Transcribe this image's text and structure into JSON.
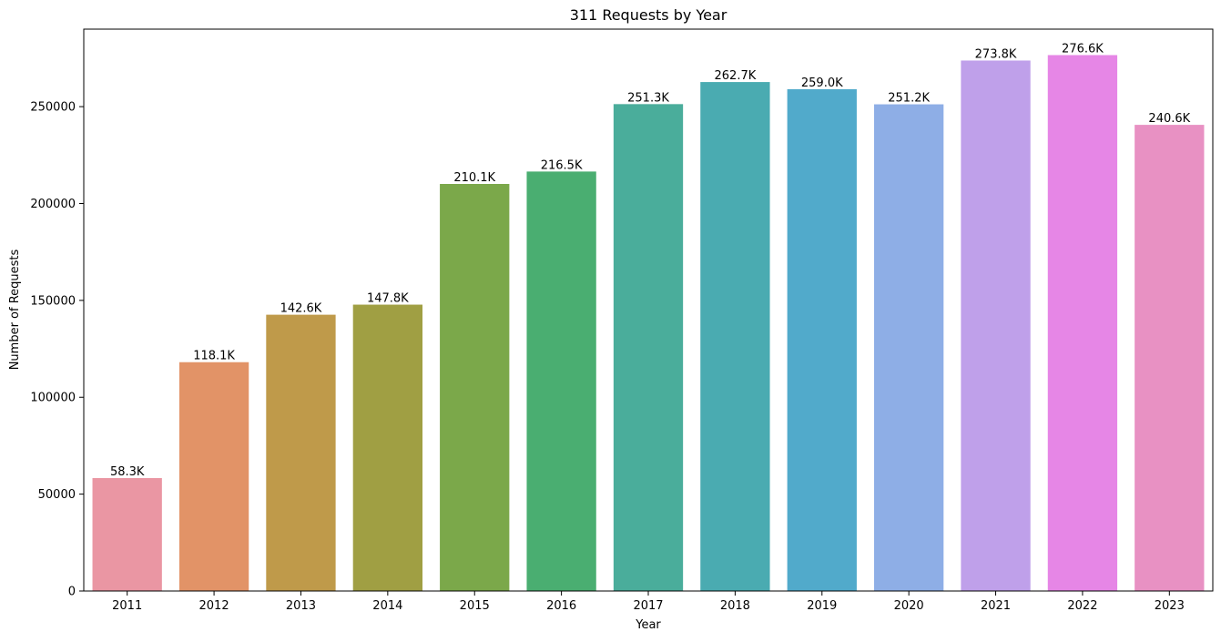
{
  "chart_data": {
    "type": "bar",
    "title": "311 Requests by Year",
    "xlabel": "Year",
    "ylabel": "Number of Requests",
    "ylim": [
      0,
      290000
    ],
    "yticks": [
      0,
      50000,
      100000,
      150000,
      200000,
      250000
    ],
    "ytick_labels": [
      "0",
      "50000",
      "100000",
      "150000",
      "200000",
      "250000"
    ],
    "grid": false,
    "legend": "none",
    "categories": [
      "2011",
      "2012",
      "2013",
      "2014",
      "2015",
      "2016",
      "2017",
      "2018",
      "2019",
      "2020",
      "2021",
      "2022",
      "2023"
    ],
    "values": [
      58300,
      118100,
      142600,
      147800,
      210100,
      216500,
      251300,
      262700,
      259000,
      251200,
      273800,
      276600,
      240600
    ],
    "data_labels": [
      "58.3K",
      "118.1K",
      "142.6K",
      "147.8K",
      "210.1K",
      "216.5K",
      "251.3K",
      "262.7K",
      "259.0K",
      "251.2K",
      "273.8K",
      "276.6K",
      "240.6K"
    ],
    "colors": [
      "#ea96a3",
      "#e29367",
      "#bf9a4a",
      "#a09f43",
      "#7ba84a",
      "#4aae71",
      "#4aad9b",
      "#4aabb1",
      "#51aacb",
      "#8eaee6",
      "#bfa0ea",
      "#e686e6",
      "#e891c3"
    ]
  }
}
